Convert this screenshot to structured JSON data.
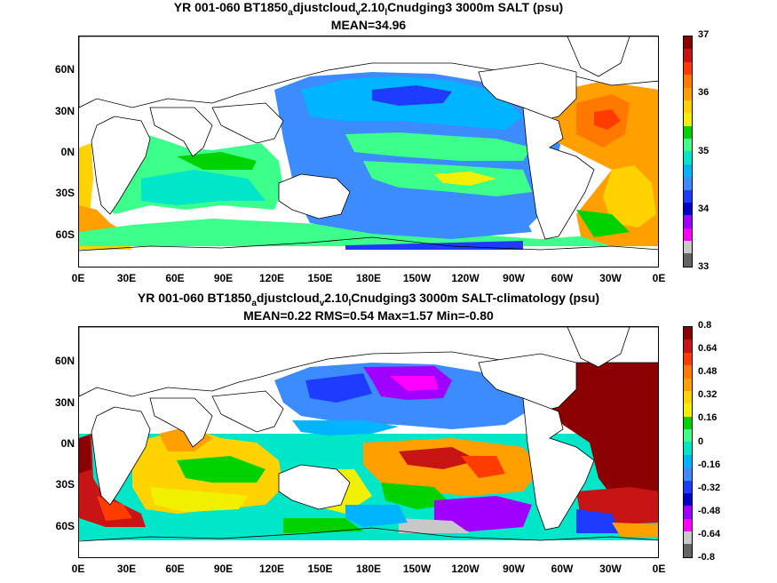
{
  "top": {
    "title_pre": "YR 001-060 BT1850",
    "title_sub1": "a",
    "title_mid": "djustcloud",
    "title_sub2": "v",
    "title_mid2": "2.10",
    "title_sub3": "l",
    "title_post": "Cnudging3 3000m SALT (psu)",
    "stats": "MEAN=34.96",
    "colorbar_labels": [
      "37",
      "36",
      "35",
      "34",
      "33"
    ],
    "colorbar_colors": [
      "#8b0000",
      "#c81414",
      "#ff3c00",
      "#ff7800",
      "#ffa000",
      "#ffd200",
      "#f0f000",
      "#00d200",
      "#3cff8c",
      "#00e6c8",
      "#00b4ff",
      "#3c8cff",
      "#1e3cff",
      "#0000c8",
      "#a000ff",
      "#ff00ff",
      "#c8c8c8",
      "#646464"
    ]
  },
  "bottom": {
    "title_pre": "YR 001-060 BT1850",
    "title_sub1": "a",
    "title_mid": "djustcloud",
    "title_sub2": "v",
    "title_mid2": "2.10",
    "title_sub3": "l",
    "title_post": "Cnudging3 3000m SALT-climatology (psu)",
    "stats": "MEAN=0.22   RMS=0.54   Max=1.57   Min=-0.80",
    "colorbar_labels": [
      "0.8",
      "0.64",
      "0.48",
      "0.32",
      "0.16",
      "0",
      "-0.16",
      "-0.32",
      "-0.48",
      "-0.64",
      "-0.8"
    ],
    "colorbar_colors": [
      "#8b0000",
      "#c81414",
      "#ff3c00",
      "#ff7800",
      "#ffa000",
      "#ffd200",
      "#f0f000",
      "#00d200",
      "#3cff8c",
      "#00e6c8",
      "#00b4ff",
      "#3c8cff",
      "#1e3cff",
      "#0000c8",
      "#a000ff",
      "#ff00ff",
      "#c8c8c8",
      "#646464"
    ]
  },
  "axes": {
    "lat_labels": [
      "60N",
      "30N",
      "0N",
      "30S",
      "60S"
    ],
    "lon_labels": [
      "0E",
      "30E",
      "60E",
      "90E",
      "120E",
      "150E",
      "180E",
      "150W",
      "120W",
      "90W",
      "60W",
      "30W",
      "0E"
    ]
  }
}
